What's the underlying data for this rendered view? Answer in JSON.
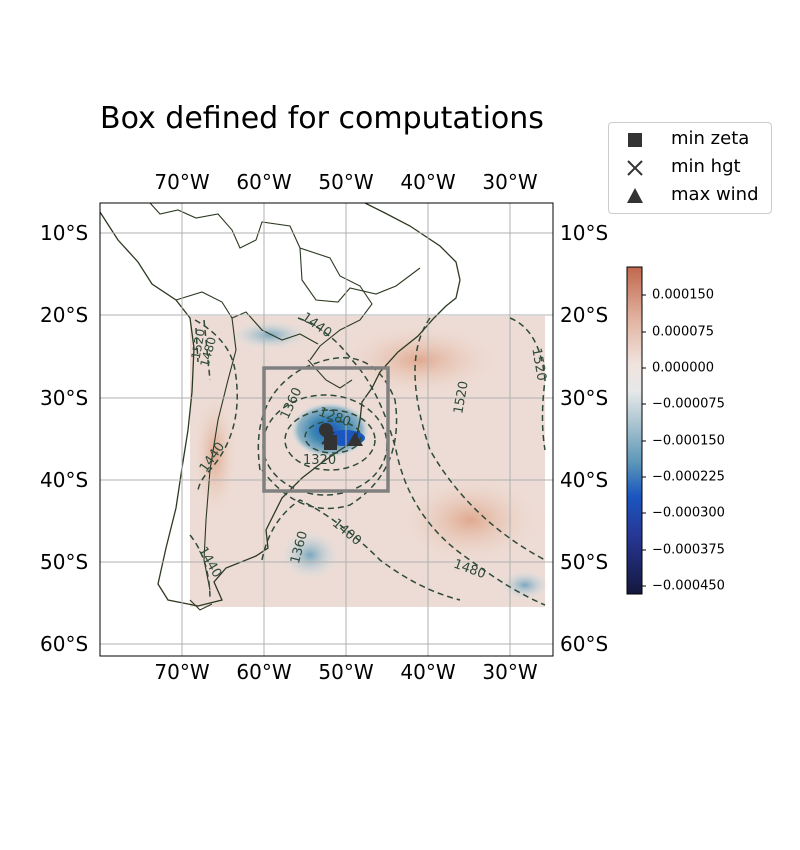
{
  "title": "Box defined for computations",
  "map": {
    "lon_ticks": [
      "70°W",
      "60°W",
      "50°W",
      "40°W",
      "30°W"
    ],
    "lat_ticks": [
      "10°S",
      "20°S",
      "30°S",
      "40°S",
      "50°S",
      "60°S"
    ],
    "extent": {
      "lon": [
        -80,
        -25
      ],
      "lat": [
        -62,
        -7
      ]
    },
    "data_extent": {
      "lon": [
        -69,
        -25
      ],
      "lat": [
        -55,
        -20
      ]
    },
    "computation_box": {
      "lon": [
        -60,
        -45
      ],
      "lat": [
        -41,
        -26
      ]
    },
    "box_color": "#808080",
    "contour_color": "#2f4a3a",
    "contour_labels": [
      "1440",
      "1520",
      "1520",
      "1360",
      "1320",
      "1280",
      "1440",
      "1400",
      "1360",
      "1480",
      "1440",
      "1520",
      "1480"
    ]
  },
  "markers": [
    {
      "label": "min zeta",
      "shape": "square",
      "lon": -51.8,
      "lat": -35.5
    },
    {
      "label": "min hgt",
      "shape": "x",
      "lon": -52.5,
      "lat": -34.0
    },
    {
      "label": "max wind",
      "shape": "triangle",
      "lon": -49.0,
      "lat": -35.0
    }
  ],
  "marker_color": "#333333",
  "extra_point": {
    "lon": -52.5,
    "lat": -33.8
  },
  "colorbar": {
    "ticks": [
      "0.000150",
      "0.000075",
      "0.000000",
      "−0.000075",
      "−0.000150",
      "−0.000225",
      "−0.000300",
      "−0.000375",
      "−0.000450"
    ],
    "values": [
      0.00015,
      7.5e-05,
      0.0,
      -7.5e-05,
      -0.00015,
      -0.000225,
      -0.0003,
      -0.000375,
      -0.00045
    ],
    "range": [
      -0.00048,
      0.00019
    ],
    "colors": [
      "#c0684d",
      "#e2b3a1",
      "#f0e4de",
      "#d9e4e8",
      "#8fb3c4",
      "#3e87b3",
      "#1a56c0",
      "#273796",
      "#14183d"
    ]
  }
}
